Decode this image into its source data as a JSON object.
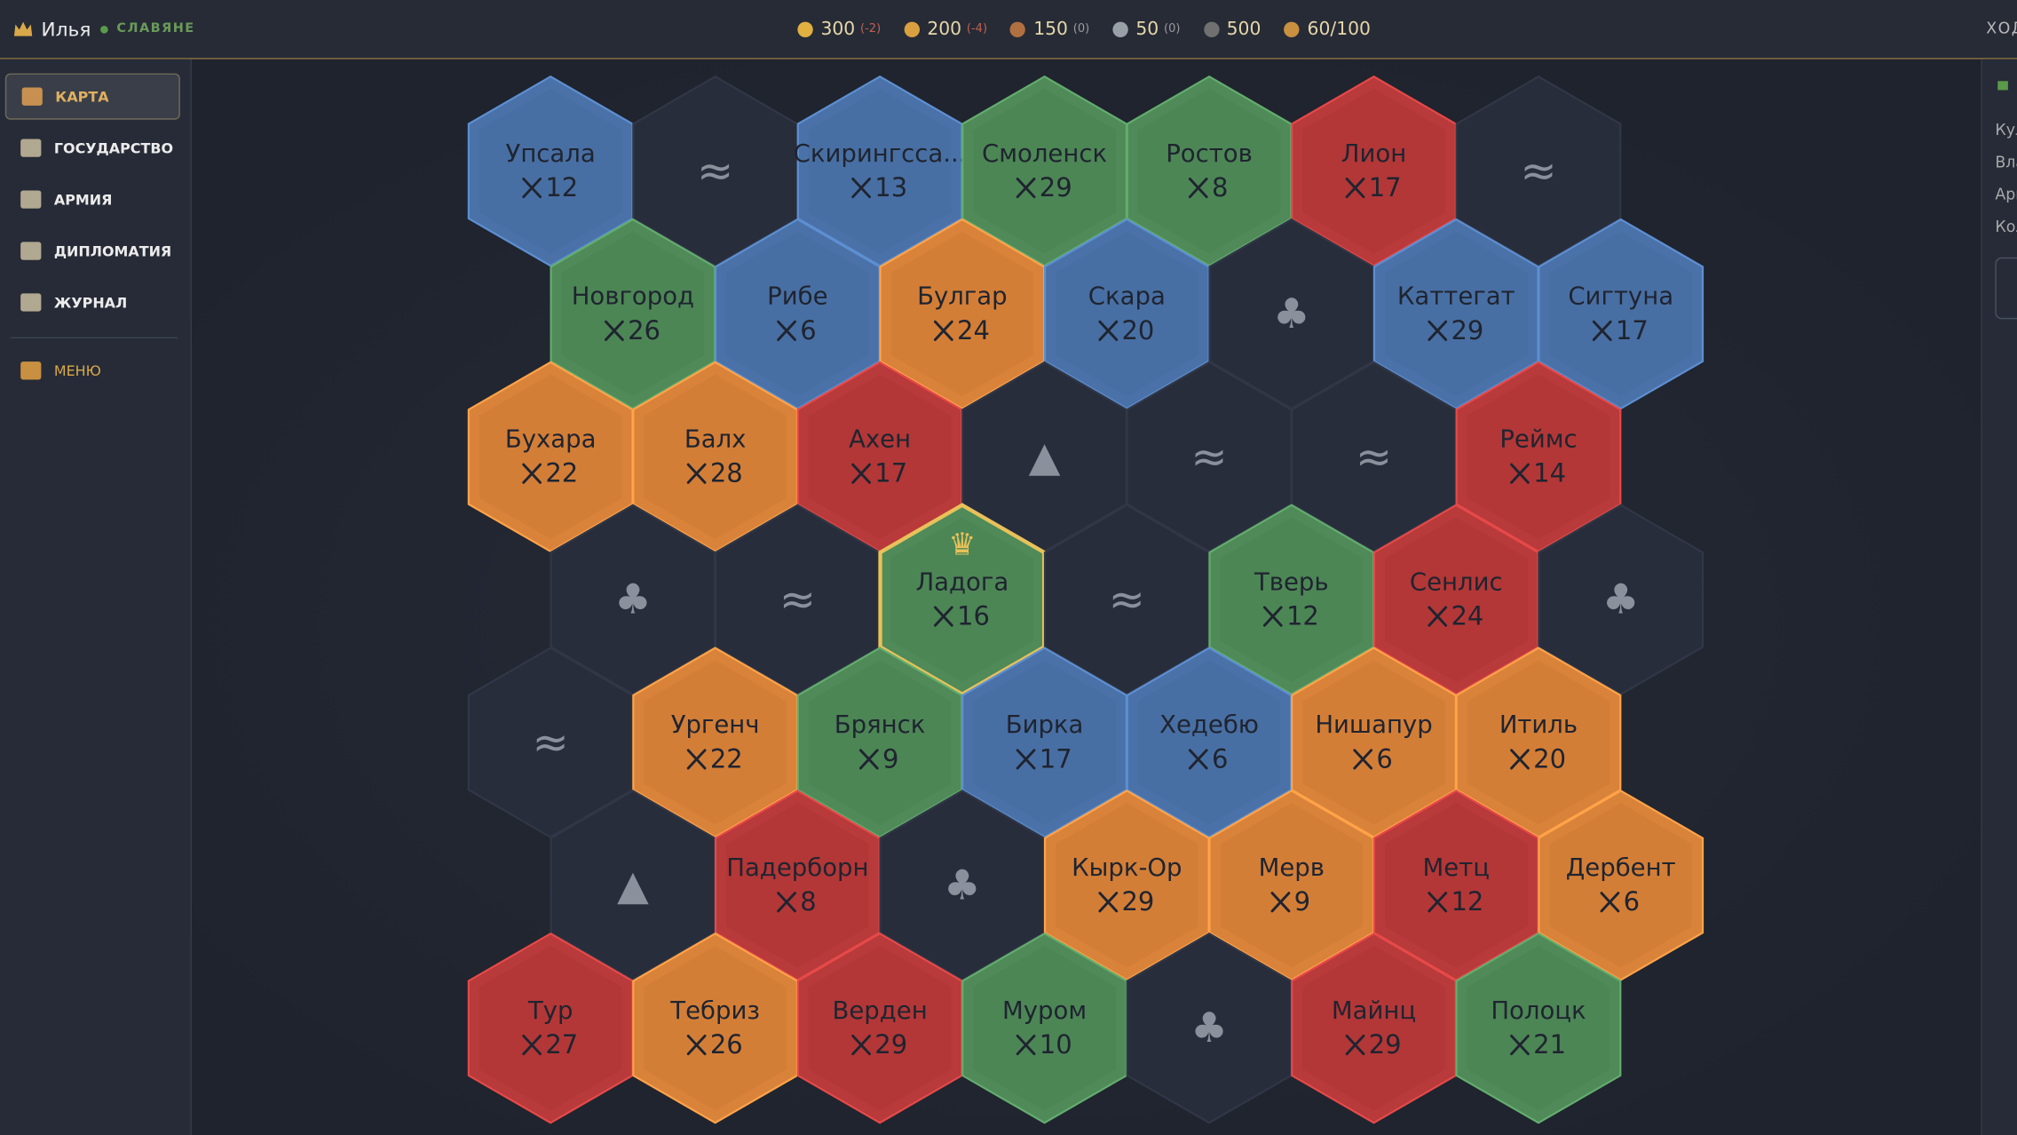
{
  "header": {
    "player": "Илья",
    "faction": "СЛАВЯНЕ",
    "turn": "ХОД",
    "resources": [
      {
        "value": 300,
        "delta": "(-2)",
        "color": "#e0b040"
      },
      {
        "value": 200,
        "delta": "(-4)",
        "color": "#d9a040"
      },
      {
        "value": 150,
        "delta": "(0)",
        "color": "#b07040"
      },
      {
        "value": 50,
        "delta": "(0)",
        "color": "#9aa0a8"
      },
      {
        "value": 500,
        "color": "#707070"
      },
      {
        "value": "60/100",
        "color": "#c89040"
      }
    ]
  },
  "sidebar": {
    "items": [
      "КАРТА",
      "ГОСУДАРСТВО",
      "АРМИЯ",
      "ДИПЛОМАТИЯ",
      "ЖУРНАЛ"
    ],
    "menu": "МЕНЮ"
  },
  "right_panel": {
    "labels": [
      "Кул",
      "Вла",
      "Арм",
      "Кол"
    ]
  },
  "map": {
    "rows": [
      [
        {
          "name": "Упсала",
          "army": 12,
          "color": "#4a72a8"
        },
        {
          "symbol": "≈"
        },
        {
          "name": "Скирингсса...",
          "army": 13,
          "color": "#4a72a8"
        },
        {
          "name": "Смоленск",
          "army": 29,
          "color": "#4f8a58"
        },
        {
          "name": "Ростов",
          "army": 8,
          "color": "#4f8a58"
        },
        {
          "name": "Лион",
          "army": 17,
          "color": "#b83a3a"
        },
        {
          "symbol": "≈"
        }
      ],
      [
        {
          "name": "Новгород",
          "army": 26,
          "color": "#4f8a58"
        },
        {
          "name": "Рибе",
          "army": 6,
          "color": "#4a72a8"
        },
        {
          "name": "Булгар",
          "army": 24,
          "color": "#d9823a"
        },
        {
          "name": "Скара",
          "army": 20,
          "color": "#4a72a8"
        },
        {
          "symbol": "♣"
        },
        {
          "name": "Каттегат",
          "army": 29,
          "color": "#4a72a8"
        },
        {
          "name": "Сигтуна",
          "army": 17,
          "color": "#4a72a8"
        }
      ],
      [
        {
          "name": "Бухара",
          "army": 22,
          "color": "#d9823a"
        },
        {
          "name": "Балх",
          "army": 28,
          "color": "#d9823a"
        },
        {
          "name": "Ахен",
          "army": 17,
          "color": "#b83a3a"
        },
        {
          "symbol": "▲"
        },
        {
          "symbol": "≈"
        },
        {
          "symbol": "≈"
        },
        {
          "name": "Реймс",
          "army": 14,
          "color": "#b83a3a"
        }
      ],
      [
        {
          "symbol": "♣"
        },
        {
          "symbol": "≈"
        },
        {
          "name": "Ладога",
          "army": 16,
          "color": "#4f8a58",
          "crown": "♛"
        },
        {
          "symbol": "≈"
        },
        {
          "name": "Тверь",
          "army": 12,
          "color": "#4f8a58"
        },
        {
          "name": "Сенлис",
          "army": 24,
          "color": "#b83a3a"
        },
        {
          "symbol": "♣"
        }
      ],
      [
        {
          "symbol": "≈"
        },
        {
          "name": "Ургенч",
          "army": 22,
          "color": "#d9823a"
        },
        {
          "name": "Брянск",
          "army": 9,
          "color": "#4f8a58"
        },
        {
          "name": "Бирка",
          "army": 17,
          "color": "#4a72a8"
        },
        {
          "name": "Хедебю",
          "army": 6,
          "color": "#4a72a8"
        },
        {
          "name": "Нишапур",
          "army": 6,
          "color": "#d9823a"
        },
        {
          "name": "Итиль",
          "army": 20,
          "color": "#d9823a"
        }
      ],
      [
        {
          "symbol": "▲"
        },
        {
          "name": "Падерборн",
          "army": 8,
          "color": "#b83a3a"
        },
        {
          "symbol": "♣"
        },
        {
          "name": "Кырк-Ор",
          "army": 29,
          "color": "#d9823a"
        },
        {
          "name": "Мерв",
          "army": 9,
          "color": "#d9823a"
        },
        {
          "name": "Метц",
          "army": 12,
          "color": "#b83a3a"
        },
        {
          "name": "Дербент",
          "army": 6,
          "color": "#d9823a"
        }
      ],
      [
        {
          "name": "Тур",
          "army": 27,
          "color": "#b83a3a"
        },
        {
          "name": "Тебриз",
          "army": 26,
          "color": "#d9823a"
        },
        {
          "name": "Верден",
          "army": 29,
          "color": "#b83a3a"
        },
        {
          "name": "Муром",
          "army": 10,
          "color": "#4f8a58"
        },
        {
          "symbol": "♣"
        },
        {
          "name": "Майнц",
          "army": 29,
          "color": "#b83a3a"
        },
        {
          "name": "Полоцк",
          "army": 21,
          "color": "#4f8a58"
        }
      ]
    ]
  }
}
